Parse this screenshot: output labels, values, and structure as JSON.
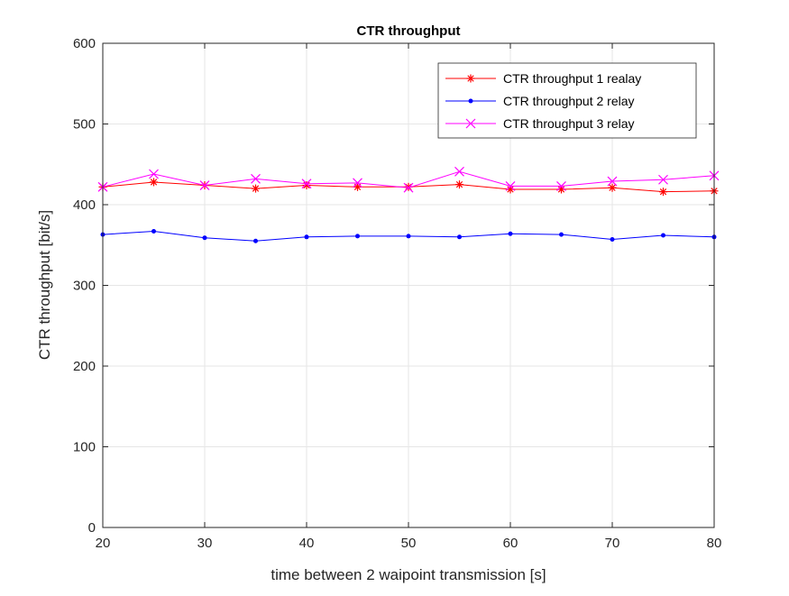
{
  "chart_data": {
    "type": "line",
    "title": "CTR throughput",
    "xlabel": "time between 2 waipoint transmission [s]",
    "ylabel": "CTR throughput [bit/s]",
    "xlim": [
      20,
      80
    ],
    "ylim": [
      0,
      600
    ],
    "xticks": [
      20,
      30,
      40,
      50,
      60,
      70,
      80
    ],
    "yticks": [
      0,
      100,
      200,
      300,
      400,
      500,
      600
    ],
    "grid": true,
    "legend_position": "top-right",
    "x": [
      20,
      25,
      30,
      35,
      40,
      45,
      50,
      55,
      60,
      65,
      70,
      75,
      80
    ],
    "series": [
      {
        "name": "CTR throughput 1 realay",
        "color": "#ff0000",
        "marker": "asterisk",
        "values": [
          422,
          428,
          424,
          420,
          424,
          422,
          422,
          425,
          419,
          419,
          421,
          416,
          417
        ]
      },
      {
        "name": "CTR throughput 2 relay",
        "color": "#0000ff",
        "marker": "dot",
        "values": [
          363,
          367,
          359,
          355,
          360,
          361,
          361,
          360,
          364,
          363,
          357,
          362,
          360
        ]
      },
      {
        "name": "CTR throughput 3 relay",
        "color": "#ff00ff",
        "marker": "cross",
        "values": [
          422,
          438,
          424,
          432,
          426,
          427,
          421,
          441,
          423,
          423,
          429,
          431,
          436
        ]
      }
    ]
  }
}
